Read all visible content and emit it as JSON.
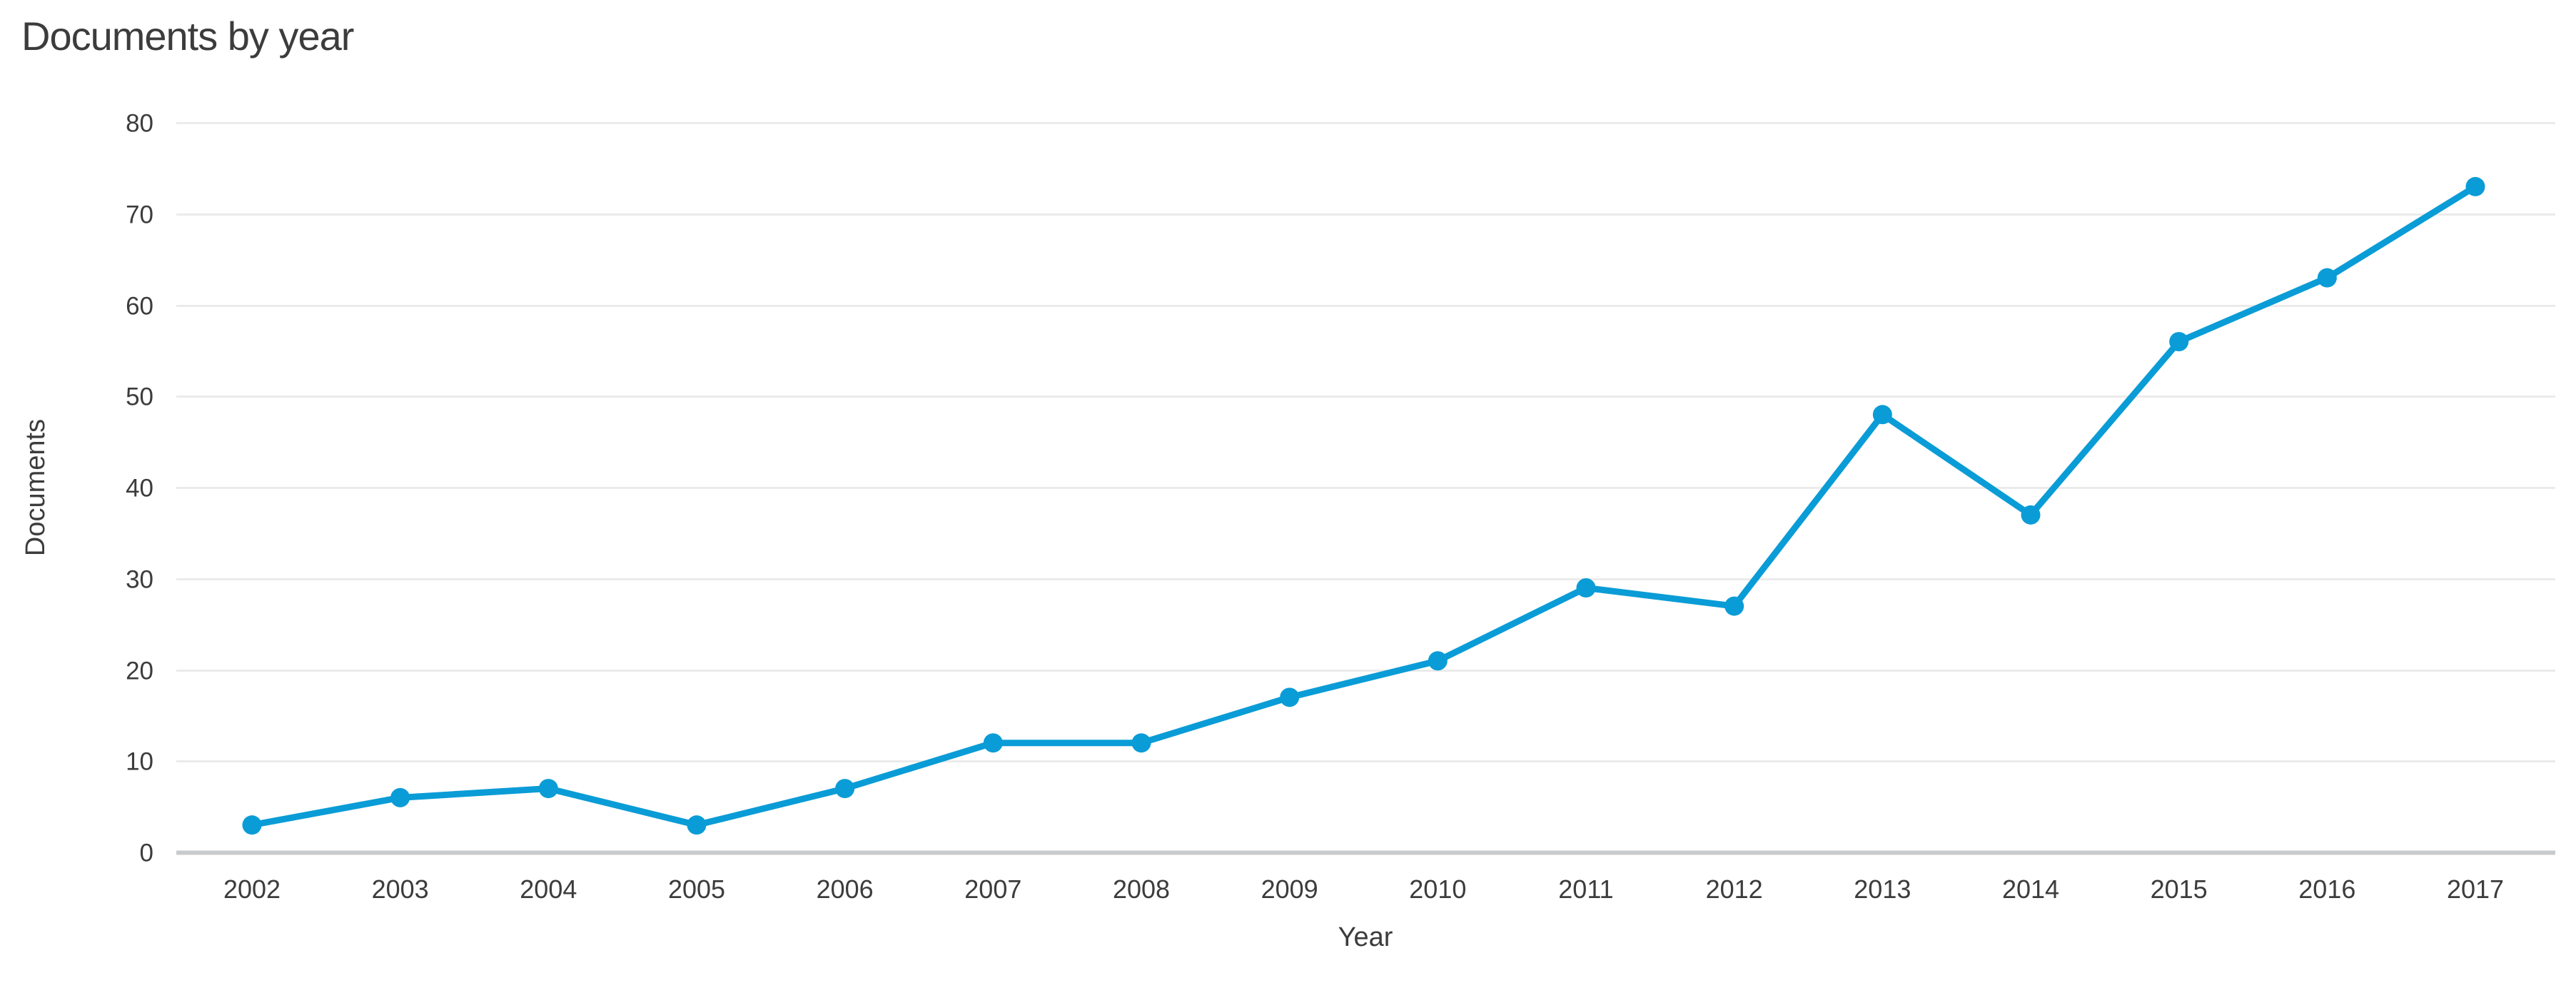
{
  "chart_data": {
    "type": "line",
    "title": "Documents by year",
    "xlabel": "Year",
    "ylabel": "Documents",
    "x": [
      2002,
      2003,
      2004,
      2005,
      2006,
      2007,
      2008,
      2009,
      2010,
      2011,
      2012,
      2013,
      2014,
      2015,
      2016,
      2017
    ],
    "series": [
      {
        "name": "Documents",
        "values": [
          3,
          6,
          7,
          3,
          7,
          12,
          12,
          17,
          21,
          29,
          27,
          48,
          37,
          56,
          63,
          73
        ]
      }
    ],
    "ylim": [
      0,
      80
    ],
    "yticks": [
      0,
      10,
      20,
      30,
      40,
      50,
      60,
      70,
      80
    ],
    "grid": "horizontal-only",
    "legend": "none",
    "marker": "circle",
    "colors": {
      "line": "#0a9cd6",
      "grid": "#ebebeb",
      "axis": "#c8cbce",
      "text": "#3c3c3c",
      "background": "#ffffff"
    }
  }
}
